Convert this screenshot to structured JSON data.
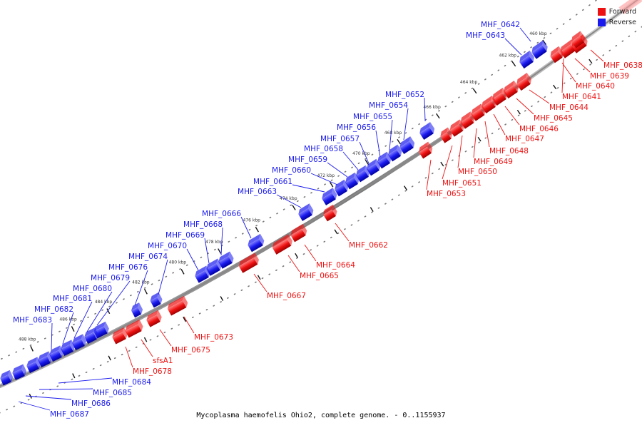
{
  "caption": "Mycoplasma haemofelis Ohio2, complete genome. - 0..1155937",
  "colors": {
    "forward": "#ee1111",
    "reverse": "#1a1aee",
    "backbone": "#888888"
  },
  "legend": [
    {
      "label": "Forward",
      "strand": "forward"
    },
    {
      "label": "Reverse",
      "strand": "reverse"
    }
  ],
  "ticks": [
    "460 kbp",
    "462 kbp",
    "464 kbp",
    "466 kbp",
    "468 kbp",
    "470 kbp",
    "472 kbp",
    "474 kbp",
    "476 kbp",
    "478 kbp",
    "480 kbp",
    "482 kbp",
    "484 kbp",
    "486 kbp",
    "488 kbp"
  ],
  "genes": [
    {
      "name": "MHF_0638",
      "strand": "forward"
    },
    {
      "name": "MHF_0639",
      "strand": "forward"
    },
    {
      "name": "MHF_0640",
      "strand": "forward"
    },
    {
      "name": "MHF_0641",
      "strand": "forward"
    },
    {
      "name": "MHF_0642",
      "strand": "reverse"
    },
    {
      "name": "MHF_0643",
      "strand": "reverse"
    },
    {
      "name": "MHF_0644",
      "strand": "forward"
    },
    {
      "name": "MHF_0645",
      "strand": "forward"
    },
    {
      "name": "MHF_0646",
      "strand": "forward"
    },
    {
      "name": "MHF_0647",
      "strand": "forward"
    },
    {
      "name": "MHF_0648",
      "strand": "forward"
    },
    {
      "name": "MHF_0649",
      "strand": "forward"
    },
    {
      "name": "MHF_0650",
      "strand": "forward"
    },
    {
      "name": "MHF_0651",
      "strand": "forward"
    },
    {
      "name": "MHF_0652",
      "strand": "reverse"
    },
    {
      "name": "MHF_0653",
      "strand": "forward"
    },
    {
      "name": "MHF_0654",
      "strand": "reverse"
    },
    {
      "name": "MHF_0655",
      "strand": "reverse"
    },
    {
      "name": "MHF_0656",
      "strand": "reverse"
    },
    {
      "name": "MHF_0657",
      "strand": "reverse"
    },
    {
      "name": "MHF_0658",
      "strand": "reverse"
    },
    {
      "name": "MHF_0659",
      "strand": "reverse"
    },
    {
      "name": "MHF_0660",
      "strand": "reverse"
    },
    {
      "name": "MHF_0661",
      "strand": "reverse"
    },
    {
      "name": "MHF_0662",
      "strand": "forward"
    },
    {
      "name": "MHF_0663",
      "strand": "reverse"
    },
    {
      "name": "MHF_0664",
      "strand": "forward"
    },
    {
      "name": "MHF_0665",
      "strand": "forward"
    },
    {
      "name": "MHF_0666",
      "strand": "reverse"
    },
    {
      "name": "MHF_0667",
      "strand": "forward"
    },
    {
      "name": "MHF_0668",
      "strand": "reverse"
    },
    {
      "name": "MHF_0669",
      "strand": "reverse"
    },
    {
      "name": "MHF_0670",
      "strand": "reverse"
    },
    {
      "name": "MHF_0673",
      "strand": "forward"
    },
    {
      "name": "MHF_0674",
      "strand": "reverse"
    },
    {
      "name": "MHF_0675",
      "strand": "forward"
    },
    {
      "name": "MHF_0676",
      "strand": "reverse"
    },
    {
      "name": "sfsA1",
      "strand": "forward"
    },
    {
      "name": "MHF_0678",
      "strand": "forward"
    },
    {
      "name": "MHF_0679",
      "strand": "reverse"
    },
    {
      "name": "MHF_0680",
      "strand": "reverse"
    },
    {
      "name": "MHF_0681",
      "strand": "reverse"
    },
    {
      "name": "MHF_0682",
      "strand": "reverse"
    },
    {
      "name": "MHF_0683",
      "strand": "reverse"
    },
    {
      "name": "MHF_0684",
      "strand": "reverse"
    },
    {
      "name": "MHF_0685",
      "strand": "reverse"
    },
    {
      "name": "MHF_0686",
      "strand": "reverse"
    },
    {
      "name": "MHF_0687",
      "strand": "reverse"
    }
  ]
}
